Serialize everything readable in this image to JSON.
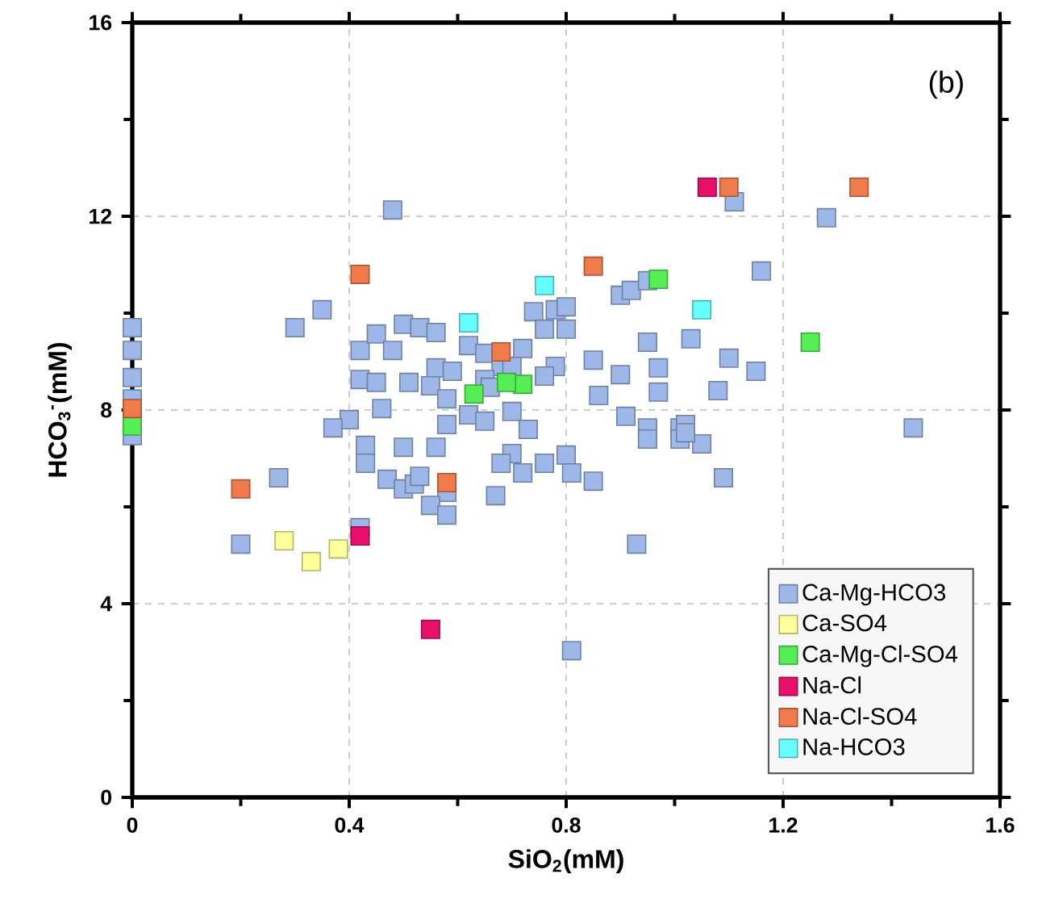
{
  "chart_data": {
    "type": "scatter",
    "xlabel": "SiO$_{2}$(mM)",
    "ylabel": "HCO$_{3}$$^{-}$(mM)",
    "annotations": [
      "(b)"
    ],
    "xlim": [
      0,
      1.6
    ],
    "ylim": [
      0,
      16
    ],
    "xticks": [
      0,
      0.4,
      0.8,
      1.2,
      1.6
    ],
    "yticks": [
      0,
      4,
      8,
      12,
      16
    ],
    "grid": true,
    "legend": "bottom right",
    "marker": "square",
    "series": [
      {
        "name": "Ca-Mg-HCO3",
        "color": "#9db8e8",
        "x": [
          0,
          0,
          0,
          0,
          0,
          0.48,
          0.3,
          0.35,
          0.42,
          0.45,
          0.48,
          0.5,
          0.42,
          0.45,
          0.51,
          0.46,
          0.4,
          0.37,
          0.43,
          0.43,
          0.5,
          0.47,
          0.5,
          0.27,
          0.2,
          0.42,
          0.74,
          0.78,
          0.8,
          0.76,
          0.8,
          0.9,
          0.92,
          0.95,
          0.53,
          0.56,
          0.62,
          0.65,
          0.72,
          0.68,
          0.7,
          0.78,
          0.76,
          0.56,
          0.59,
          0.55,
          0.58,
          0.65,
          0.66,
          0.7,
          0.62,
          0.65,
          0.58,
          0.73,
          0.85,
          0.95,
          1.03,
          0.9,
          0.97,
          0.86,
          0.97,
          0.91,
          0.95,
          0.95,
          1.01,
          1.01,
          1.05,
          0.56,
          0.7,
          0.8,
          0.68,
          0.76,
          0.72,
          0.81,
          0.85,
          0.52,
          0.53,
          0.58,
          0.55,
          0.58,
          0.67,
          0.93,
          1.11,
          1.28,
          1.16,
          1.1,
          1.15,
          1.08,
          1.02,
          1.02,
          1.44,
          1.09,
          0.81
        ],
        "values": [
          9.7,
          9.23,
          8.67,
          8.23,
          7.47,
          12.13,
          9.7,
          10.07,
          9.23,
          9.57,
          9.23,
          9.77,
          8.63,
          8.57,
          8.57,
          8.03,
          7.8,
          7.63,
          7.27,
          6.9,
          7.23,
          6.57,
          6.37,
          6.6,
          5.23,
          5.57,
          10.03,
          10.07,
          10.13,
          9.67,
          9.67,
          10.37,
          10.47,
          10.67,
          9.7,
          9.6,
          9.33,
          9.17,
          9.27,
          8.9,
          8.9,
          8.9,
          8.7,
          8.87,
          8.8,
          8.5,
          8.23,
          8.63,
          8.47,
          7.97,
          7.9,
          7.77,
          7.7,
          7.6,
          9.03,
          9.4,
          9.47,
          8.73,
          8.87,
          8.3,
          8.37,
          7.87,
          7.63,
          7.4,
          7.63,
          7.4,
          7.3,
          7.23,
          7.1,
          7.07,
          6.9,
          6.9,
          6.7,
          6.7,
          6.53,
          6.47,
          6.63,
          6.3,
          6.03,
          5.83,
          6.23,
          5.23,
          12.3,
          11.97,
          10.87,
          9.07,
          8.8,
          8.4,
          7.7,
          7.53,
          7.63,
          6.6,
          3.03
        ]
      },
      {
        "name": "Ca-SO4",
        "color": "#ffff99",
        "x": [
          0.28,
          0.33,
          0.38
        ],
        "values": [
          5.3,
          4.87,
          5.13
        ]
      },
      {
        "name": "Ca-Mg-Cl-SO4",
        "color": "#55ee55",
        "x": [
          0.97,
          1.25,
          0.63,
          0.72,
          0.69,
          0
        ],
        "values": [
          10.7,
          9.4,
          8.33,
          8.53,
          8.57,
          7.67
        ]
      },
      {
        "name": "Na-Cl",
        "color": "#e8106a",
        "x": [
          1.06,
          0.55,
          0.42
        ],
        "values": [
          12.6,
          3.47,
          5.4
        ]
      },
      {
        "name": "Na-Cl-SO4",
        "color": "#f07a4a",
        "x": [
          1.1,
          1.34,
          0.42,
          0.85,
          0.68,
          0.58,
          0.2,
          0
        ],
        "values": [
          12.6,
          12.6,
          10.8,
          10.97,
          9.2,
          6.5,
          6.37,
          8.03
        ]
      },
      {
        "name": "Na-HCO3",
        "color": "#66ffff",
        "x": [
          0.76,
          0.62,
          1.05
        ],
        "values": [
          10.57,
          9.8,
          10.07
        ]
      }
    ]
  }
}
